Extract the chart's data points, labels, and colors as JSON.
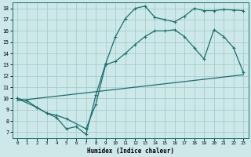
{
  "title": "",
  "xlabel": "Humidex (Indice chaleur)",
  "bg_color": "#cce8e8",
  "grid_color": "#aacccc",
  "line_color": "#1a7070",
  "xlim": [
    -0.5,
    23.5
  ],
  "ylim": [
    6.5,
    18.5
  ],
  "xticks": [
    0,
    1,
    2,
    3,
    4,
    5,
    6,
    7,
    8,
    9,
    10,
    11,
    12,
    13,
    14,
    15,
    16,
    17,
    18,
    19,
    20,
    21,
    22,
    23
  ],
  "yticks": [
    7,
    8,
    9,
    10,
    11,
    12,
    13,
    14,
    15,
    16,
    17,
    18
  ],
  "line1_x": [
    0,
    1,
    2,
    3,
    4,
    5,
    6,
    7,
    8,
    9,
    10,
    11,
    12,
    13,
    14,
    15,
    16,
    17,
    18,
    19,
    20,
    21,
    22,
    23
  ],
  "line1_y": [
    10.0,
    9.8,
    9.2,
    8.7,
    8.3,
    7.3,
    7.5,
    6.8,
    10.3,
    13.1,
    15.5,
    17.1,
    18.0,
    18.2,
    17.2,
    17.0,
    16.8,
    17.3,
    18.0,
    17.8,
    17.8,
    17.9,
    17.85,
    17.8
  ],
  "line2_x": [
    0,
    2,
    3,
    4,
    5,
    7,
    8,
    9,
    10,
    11,
    12,
    13,
    14,
    15,
    16,
    17,
    18,
    19,
    20,
    21,
    22,
    23
  ],
  "line2_y": [
    10.0,
    9.2,
    8.7,
    8.5,
    8.2,
    7.3,
    9.5,
    13.0,
    13.3,
    14.0,
    14.8,
    15.5,
    16.0,
    16.0,
    16.1,
    15.5,
    14.5,
    13.5,
    16.1,
    15.5,
    14.5,
    12.3
  ],
  "line3_x": [
    0,
    23
  ],
  "line3_y": [
    9.8,
    12.1
  ],
  "figsize": [
    3.2,
    2.0
  ],
  "dpi": 100
}
